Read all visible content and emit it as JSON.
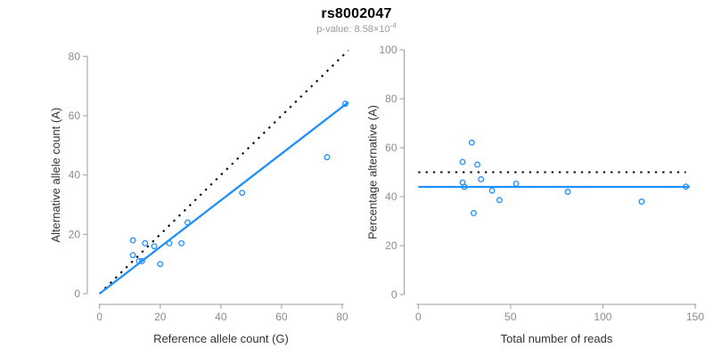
{
  "page": {
    "title": "rs8002047",
    "subtitle_label": "p-value:",
    "subtitle_value": "8.58×10",
    "subtitle_exponent": "-4"
  },
  "colors": {
    "accent_blue": "#1E90FF",
    "dotted_black": "#000000",
    "axis_line": "#9e9e9e",
    "tick_label": "#8c8c8c",
    "axis_title": "#333333",
    "title": "#000000",
    "subtitle": "#9a9a9a"
  },
  "chart_data": [
    {
      "id": "allele-counts",
      "type": "scatter",
      "xlabel": "Reference allele count (G)",
      "ylabel": "Alternative allele count (A)",
      "xlim": [
        0,
        82
      ],
      "ylim": [
        0,
        82
      ],
      "xticks": [
        0,
        20,
        40,
        60,
        80
      ],
      "yticks": [
        0,
        20,
        40,
        60,
        80
      ],
      "grid": false,
      "legend": "none",
      "marker": "open-circle",
      "points": [
        [
          11,
          18
        ],
        [
          11,
          13
        ],
        [
          13,
          11
        ],
        [
          14,
          11
        ],
        [
          15,
          17
        ],
        [
          18,
          16
        ],
        [
          20,
          10
        ],
        [
          23,
          17
        ],
        [
          27,
          17
        ],
        [
          29,
          24
        ],
        [
          47,
          34
        ],
        [
          75,
          46
        ],
        [
          81,
          64
        ]
      ],
      "lines": [
        {
          "name": "identity-line",
          "style": "dotted",
          "color": "#000000",
          "x1": 0,
          "y1": 0,
          "x2": 82,
          "y2": 82
        },
        {
          "name": "fit-line",
          "style": "solid",
          "color": "#1E90FF",
          "x1": 0,
          "y1": 0,
          "x2": 82,
          "y2": 64.5
        }
      ]
    },
    {
      "id": "percentage-vs-reads",
      "type": "scatter",
      "xlabel": "Total number of reads",
      "ylabel": "Percentage alternative (A)",
      "xlim": [
        0,
        150
      ],
      "ylim": [
        0,
        100
      ],
      "xticks": [
        0,
        50,
        100,
        150
      ],
      "yticks": [
        0,
        20,
        40,
        60,
        80,
        100
      ],
      "grid": false,
      "legend": "none",
      "marker": "open-circle",
      "points": [
        [
          29,
          62.1
        ],
        [
          24,
          54.2
        ],
        [
          24,
          45.8
        ],
        [
          25,
          44.0
        ],
        [
          32,
          53.1
        ],
        [
          34,
          47.1
        ],
        [
          30,
          33.3
        ],
        [
          40,
          42.5
        ],
        [
          44,
          38.6
        ],
        [
          53,
          45.3
        ],
        [
          81,
          42.0
        ],
        [
          121,
          38.0
        ],
        [
          145,
          44.1
        ]
      ],
      "lines": [
        {
          "name": "fifty-percent-line",
          "style": "dotted",
          "color": "#000000",
          "x1": 0,
          "y1": 50,
          "x2": 145,
          "y2": 50
        },
        {
          "name": "mean-percentage-line",
          "style": "solid",
          "color": "#1E90FF",
          "x1": 0,
          "y1": 44,
          "x2": 147,
          "y2": 44
        }
      ]
    }
  ]
}
